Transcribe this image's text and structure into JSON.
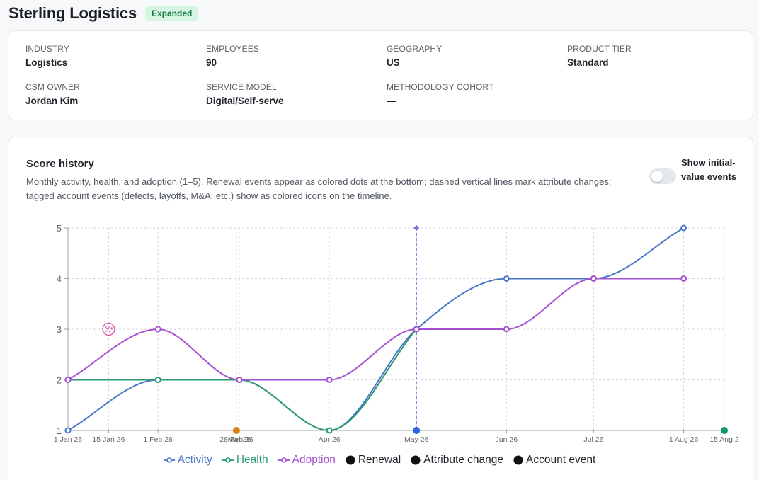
{
  "header": {
    "title": "Sterling Logistics",
    "badge": "Expanded"
  },
  "info": [
    {
      "label": "INDUSTRY",
      "value": "Logistics"
    },
    {
      "label": "EMPLOYEES",
      "value": "90"
    },
    {
      "label": "GEOGRAPHY",
      "value": "US"
    },
    {
      "label": "PRODUCT TIER",
      "value": "Standard"
    },
    {
      "label": "CSM OWNER",
      "value": "Jordan Kim"
    },
    {
      "label": "SERVICE MODEL",
      "value": "Digital/Self-serve"
    },
    {
      "label": "METHODOLOGY COHORT",
      "value": "—"
    }
  ],
  "score_history": {
    "title": "Score history",
    "description": "Monthly activity, health, and adoption (1–5). Renewal events appear as colored dots at the bottom; dashed vertical lines mark attribute changes; tagged account events (defects, layoffs, M&A, etc.) show as colored icons on the timeline.",
    "toggle_label": "Show initial-value events",
    "toggle_on": false
  },
  "colors": {
    "activity": "#4a76c9",
    "health": "#2a9a73",
    "adoption": "#a64fd4"
  },
  "chart_data": {
    "type": "line",
    "ylim": [
      1,
      5
    ],
    "yticks": [
      "1",
      "2",
      "3",
      "4",
      "5"
    ],
    "xticks": [
      "1 Jan 26",
      "15 Jan 26",
      "1 Feb 26",
      "28 Feb 26",
      "Mar 26",
      "Apr 26",
      "May 26",
      "Jun 26",
      "Jul 26",
      "1 Aug 26",
      "15 Aug 2"
    ],
    "grid": true,
    "legend_position": "bottom",
    "series": [
      {
        "name": "Activity",
        "color": "#4a76c9",
        "points": [
          [
            "2026-01-01",
            1
          ],
          [
            "2026-02-01",
            2
          ],
          [
            "2026-03-01",
            2
          ],
          [
            "2026-04-01",
            1
          ],
          [
            "2026-05-01",
            3
          ],
          [
            "2026-06-01",
            4
          ],
          [
            "2026-07-01",
            4
          ],
          [
            "2026-08-01",
            5
          ]
        ]
      },
      {
        "name": "Health",
        "color": "#2a9a73",
        "points": [
          [
            "2026-01-01",
            2
          ],
          [
            "2026-02-01",
            2
          ],
          [
            "2026-03-01",
            2
          ],
          [
            "2026-04-01",
            1
          ],
          [
            "2026-05-01",
            3
          ]
        ]
      },
      {
        "name": "Adoption",
        "color": "#a64fd4",
        "points": [
          [
            "2026-01-01",
            2
          ],
          [
            "2026-02-01",
            3
          ],
          [
            "2026-03-01",
            2
          ],
          [
            "2026-04-01",
            2
          ],
          [
            "2026-05-01",
            3
          ],
          [
            "2026-06-01",
            3
          ],
          [
            "2026-07-01",
            4
          ],
          [
            "2026-08-01",
            4
          ]
        ]
      }
    ],
    "renewals": [
      {
        "date": "2026-02-28",
        "color": "#d9820f"
      },
      {
        "date": "2026-05-01",
        "color": "#2e62e0"
      },
      {
        "date": "2026-08-15",
        "color": "#119a63"
      }
    ],
    "attribute_changes": [
      {
        "date": "2026-05-01",
        "color": "#7b6fd6"
      }
    ],
    "account_events": [
      {
        "date": "2026-01-15",
        "value": 3,
        "color": "#d563b0",
        "icon": "person-add-icon"
      }
    ],
    "legend": [
      {
        "label": "Activity",
        "kind": "line",
        "color": "#4a76c9"
      },
      {
        "label": "Health",
        "kind": "line",
        "color": "#2a9a73"
      },
      {
        "label": "Adoption",
        "kind": "line",
        "color": "#a64fd4"
      },
      {
        "label": "Renewal",
        "kind": "dot",
        "color": "#111111"
      },
      {
        "label": "Attribute change",
        "kind": "dot",
        "color": "#111111"
      },
      {
        "label": "Account event",
        "kind": "dot",
        "color": "#111111"
      }
    ]
  }
}
